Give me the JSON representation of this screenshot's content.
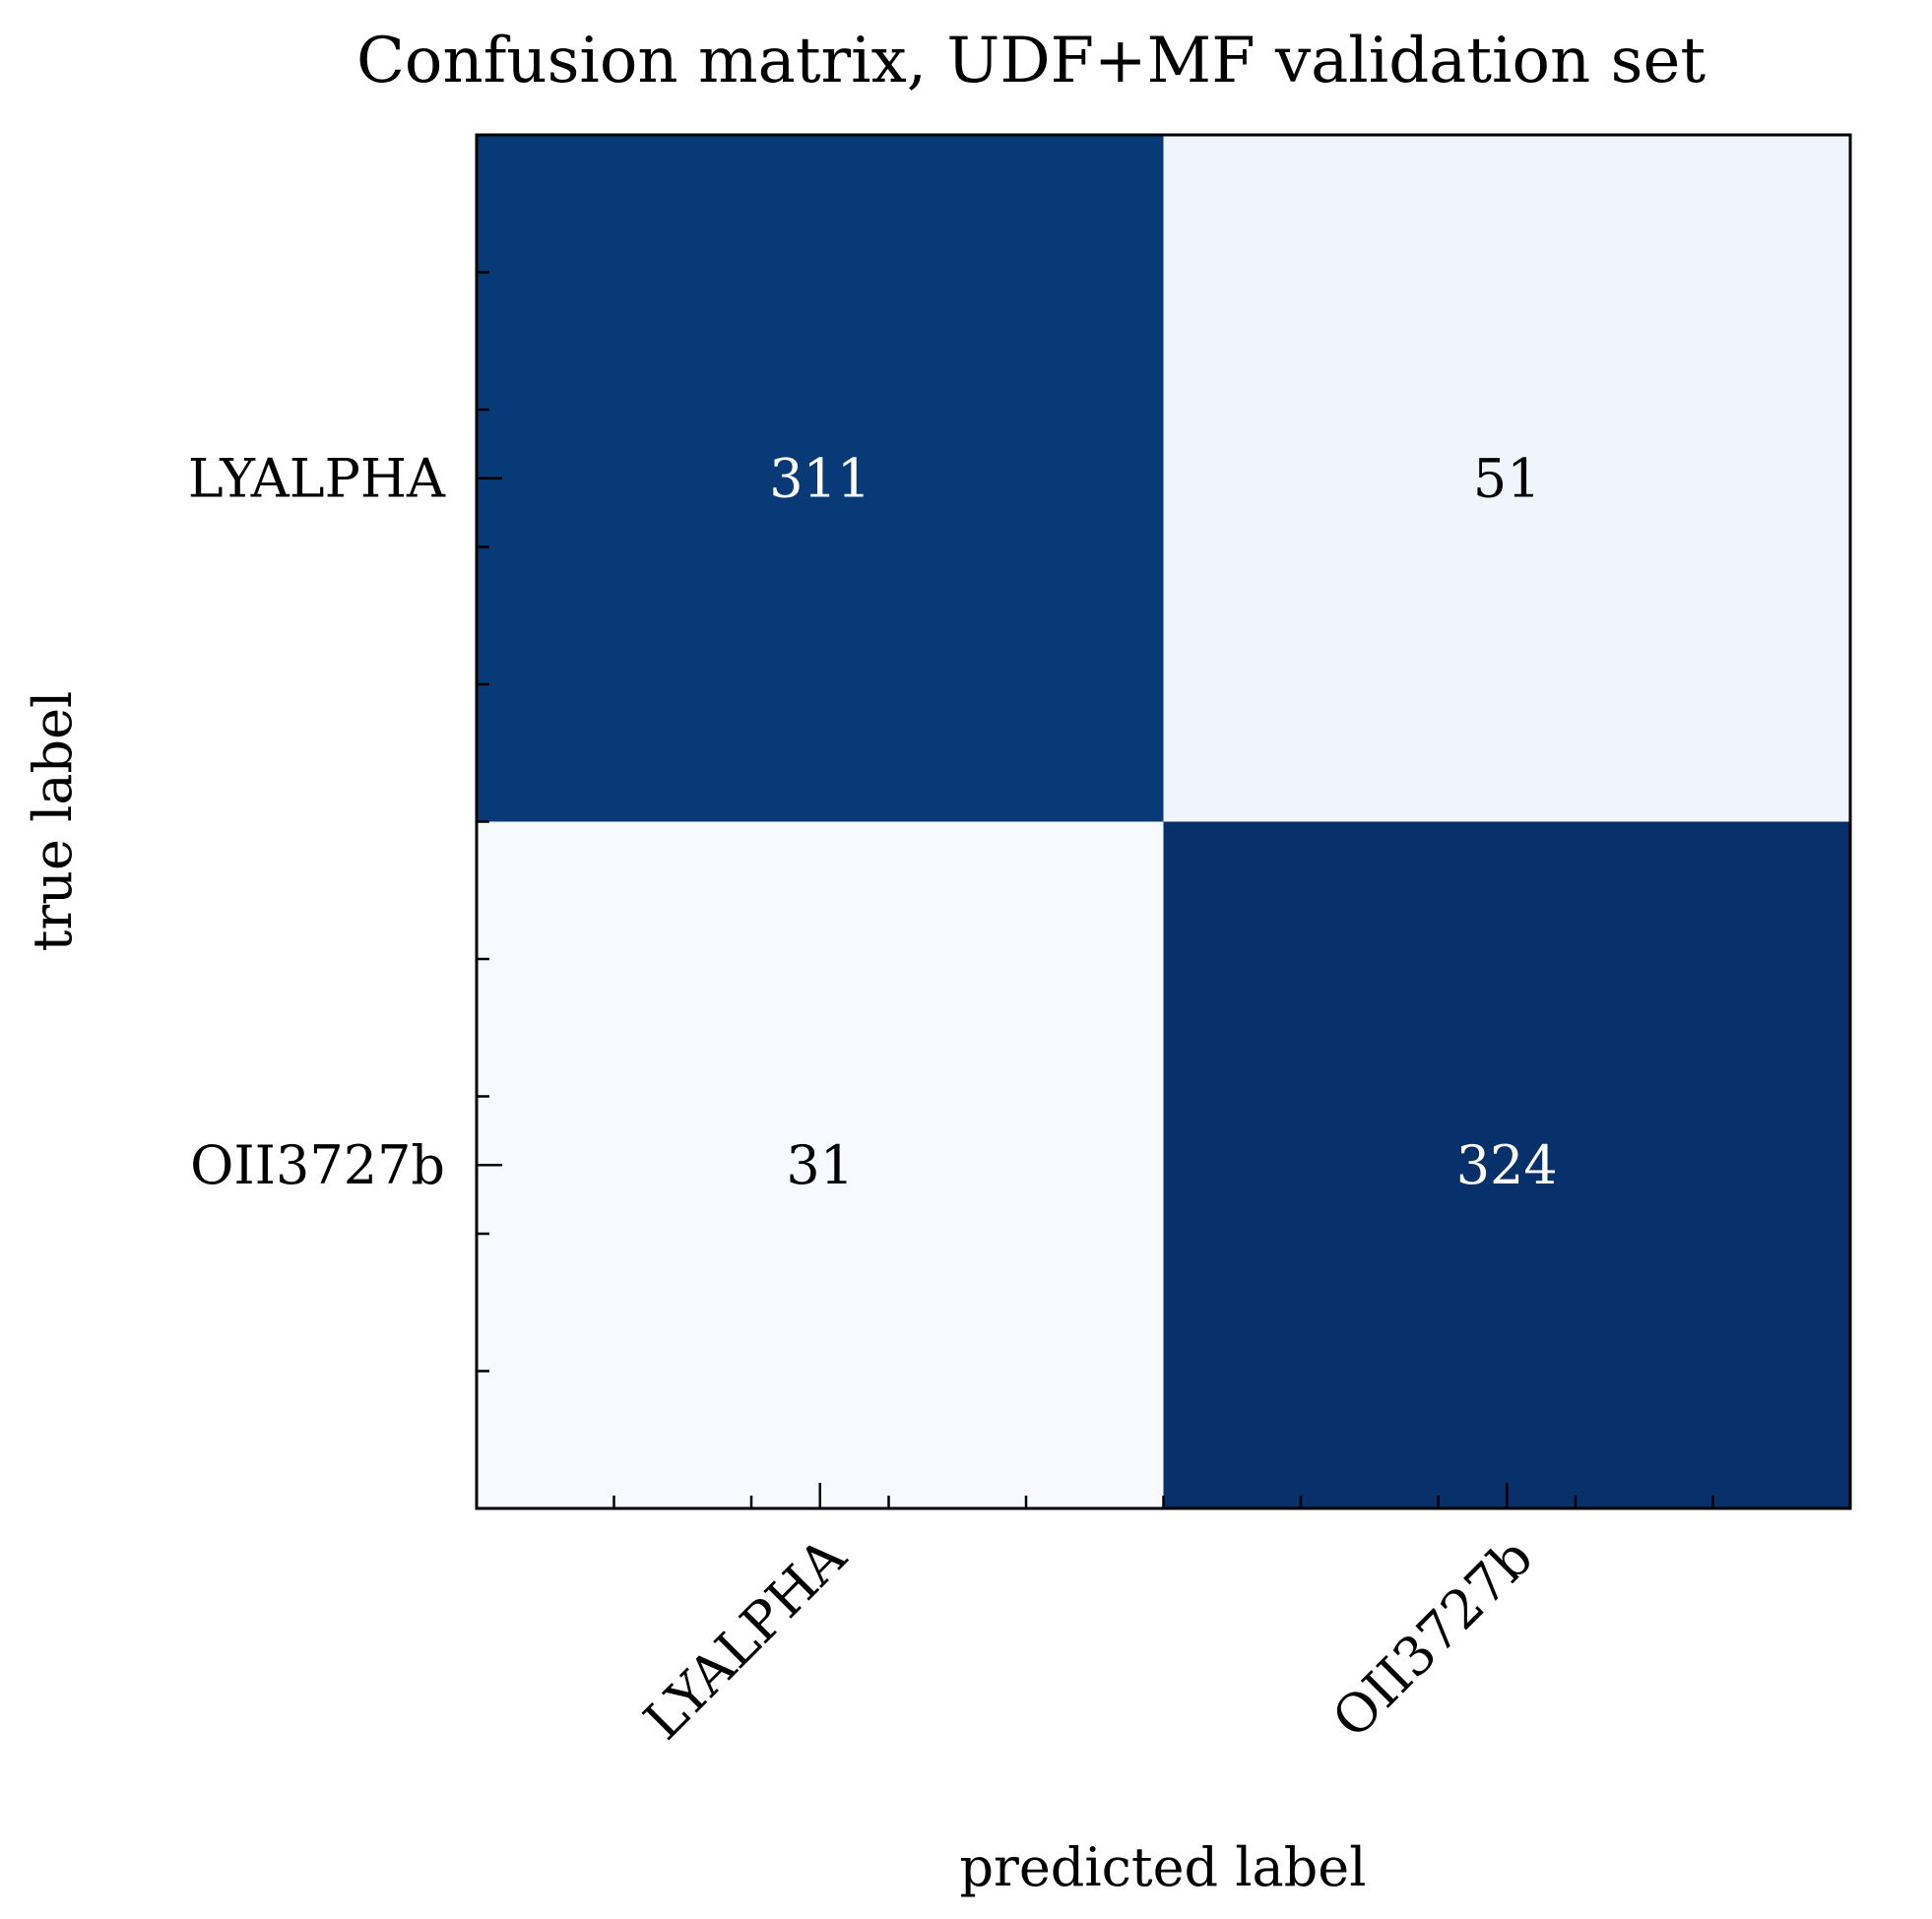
{
  "chart_data": {
    "type": "heatmap",
    "title": "Confusion matrix, UDF+MF validation set",
    "xlabel": "predicted label",
    "ylabel": "true label",
    "x_categories": [
      "LYALPHA",
      "OII3727b"
    ],
    "y_categories": [
      "LYALPHA",
      "OII3727b"
    ],
    "values": [
      [
        311,
        51
      ],
      [
        31,
        324
      ]
    ],
    "colormap": "Blues",
    "colors": {
      "high": "#08306b",
      "high_alt": "#083b7a",
      "mid_low": "#e9f0fa",
      "low": "#f6f9fe",
      "text_on_dark": "#ffffff",
      "text_on_light": "#000000",
      "frame": "#000000"
    }
  }
}
